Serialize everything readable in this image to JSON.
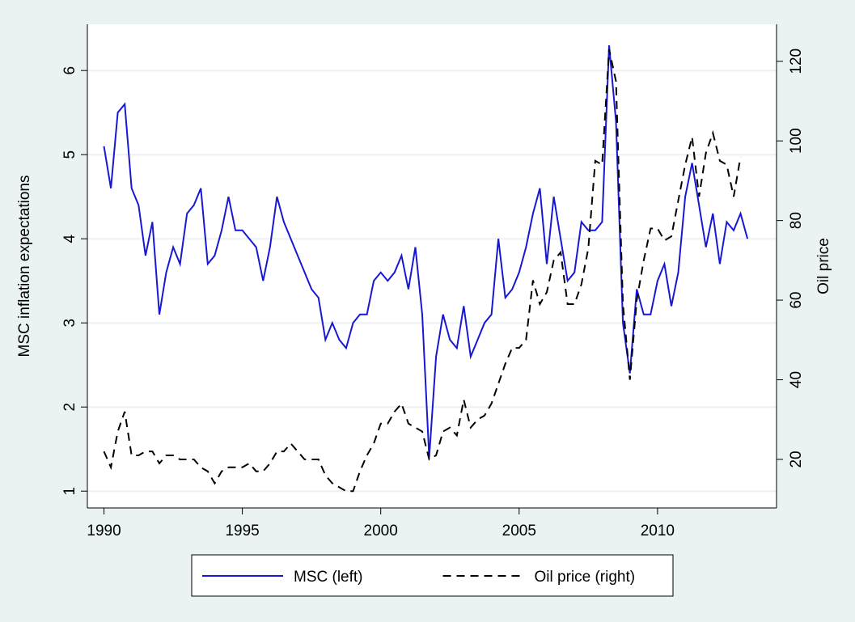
{
  "chart_data": {
    "type": "line",
    "ylabel": "MSC inflation expectations",
    "y2label": "Oil price",
    "x": [
      1990,
      1990.25,
      1990.5,
      1990.75,
      1991,
      1991.25,
      1991.5,
      1991.75,
      1992,
      1992.25,
      1992.5,
      1992.75,
      1993,
      1993.25,
      1993.5,
      1993.75,
      1994,
      1994.25,
      1994.5,
      1994.75,
      1995,
      1995.25,
      1995.5,
      1995.75,
      1996,
      1996.25,
      1996.5,
      1996.75,
      1997,
      1997.25,
      1997.5,
      1997.75,
      1998,
      1998.25,
      1998.5,
      1998.75,
      1999,
      1999.25,
      1999.5,
      1999.75,
      2000,
      2000.25,
      2000.5,
      2000.75,
      2001,
      2001.25,
      2001.5,
      2001.75,
      2002,
      2002.25,
      2002.5,
      2002.75,
      2003,
      2003.25,
      2003.5,
      2003.75,
      2004,
      2004.25,
      2004.5,
      2004.75,
      2005,
      2005.25,
      2005.5,
      2005.75,
      2006,
      2006.25,
      2006.5,
      2006.75,
      2007,
      2007.25,
      2007.5,
      2007.75,
      2008,
      2008.25,
      2008.5,
      2008.75,
      2009,
      2009.25,
      2009.5,
      2009.75,
      2010,
      2010.25,
      2010.5,
      2010.75,
      2011,
      2011.25,
      2011.5,
      2011.75,
      2012,
      2012.25,
      2012.5,
      2012.75,
      2013,
      2013.25
    ],
    "series": [
      {
        "name": "MSC (left)",
        "color": "#1818d2",
        "dash": "solid",
        "axis": "y",
        "values": [
          5.1,
          4.6,
          5.5,
          5.6,
          4.6,
          4.4,
          3.8,
          4.2,
          3.1,
          3.6,
          3.9,
          3.7,
          4.3,
          4.4,
          4.6,
          3.7,
          3.8,
          4.1,
          4.5,
          4.1,
          4.1,
          4.0,
          3.9,
          3.5,
          3.9,
          4.5,
          4.2,
          4.0,
          3.8,
          3.6,
          3.4,
          3.3,
          2.8,
          3.0,
          2.8,
          2.7,
          3.0,
          3.1,
          3.1,
          3.5,
          3.6,
          3.5,
          3.6,
          3.8,
          3.4,
          3.9,
          3.1,
          1.4,
          2.6,
          3.1,
          2.8,
          2.7,
          3.2,
          2.6,
          2.8,
          3.0,
          3.1,
          4.0,
          3.3,
          3.4,
          3.6,
          3.9,
          4.3,
          4.6,
          3.7,
          4.5,
          4.0,
          3.5,
          3.6,
          4.2,
          4.1,
          4.1,
          4.2,
          6.3,
          5.4,
          3.0,
          2.4,
          3.4,
          3.1,
          3.1,
          3.5,
          3.7,
          3.2,
          3.6,
          4.5,
          4.9,
          4.4,
          3.9,
          4.3,
          3.7,
          4.2,
          4.1,
          4.3,
          4.0
        ]
      },
      {
        "name": "Oil price (right)",
        "color": "#000000",
        "dash": "dashed",
        "axis": "y2",
        "values": [
          22,
          18,
          27,
          32,
          21,
          21,
          22,
          22,
          19,
          21,
          21,
          20,
          20,
          20,
          18,
          17,
          14,
          17,
          18,
          18,
          18,
          19,
          17,
          17,
          19,
          22,
          22,
          24,
          22,
          20,
          20,
          20,
          16,
          14,
          13,
          12,
          12,
          17,
          21,
          24,
          29,
          29,
          32,
          34,
          29,
          28,
          27,
          20,
          21,
          27,
          28,
          26,
          35,
          28,
          30,
          31,
          34,
          39,
          44,
          48,
          48,
          50,
          65,
          59,
          62,
          70,
          72,
          59,
          59,
          64,
          73,
          95,
          94,
          123,
          115,
          59,
          40,
          60,
          70,
          78,
          78,
          75,
          76,
          85,
          94,
          101,
          86,
          97,
          102,
          95,
          94,
          86,
          96,
          null
        ]
      }
    ],
    "xlim": [
      1989.4,
      2014.3
    ],
    "xticks": [
      1990,
      1995,
      2000,
      2005,
      2010
    ],
    "ylim": [
      0.8,
      6.55
    ],
    "yticks": [
      1,
      2,
      3,
      4,
      5,
      6
    ],
    "y2lim": [
      7.8,
      129.3
    ],
    "y2ticks": [
      20,
      40,
      60,
      80,
      100,
      120
    ],
    "grid": true,
    "legend": "bottom"
  }
}
